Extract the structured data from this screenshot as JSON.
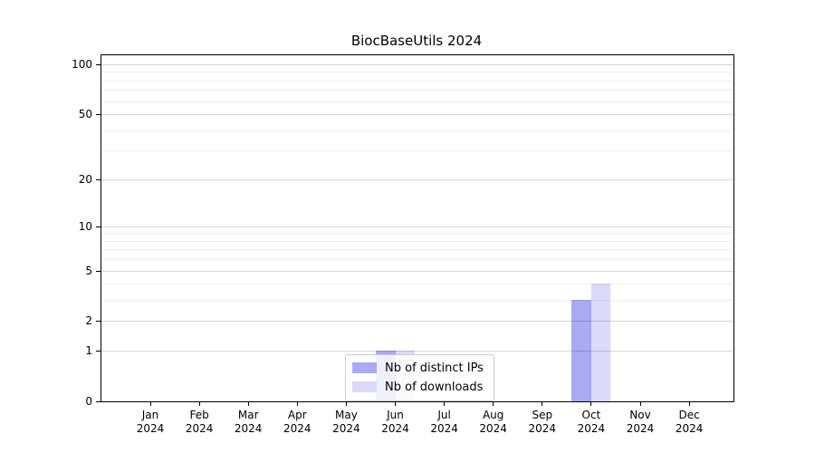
{
  "chart_data": {
    "type": "bar",
    "title": "BiocBaseUtils 2024",
    "categories": [
      "Jan 2024",
      "Feb 2024",
      "Mar 2024",
      "Apr 2024",
      "May 2024",
      "Jun 2024",
      "Jul 2024",
      "Aug 2024",
      "Sep 2024",
      "Oct 2024",
      "Nov 2024",
      "Dec 2024"
    ],
    "series": [
      {
        "name": "Nb of distinct IPs",
        "color": "#a9a9f4",
        "values": [
          0,
          0,
          0,
          0,
          0,
          1,
          0,
          0,
          0,
          3,
          0,
          0
        ]
      },
      {
        "name": "Nb of downloads",
        "color": "#dadaf8",
        "values": [
          0,
          0,
          0,
          0,
          0,
          1,
          0,
          0,
          0,
          4,
          0,
          0
        ]
      }
    ],
    "xlabel": "",
    "ylabel": "",
    "yscale": "log1p",
    "yticks": [
      0,
      1,
      2,
      5,
      10,
      20,
      50,
      100
    ],
    "minor_grid_values": [
      3,
      4,
      6,
      7,
      8,
      9,
      30,
      40,
      60,
      70,
      80,
      90
    ],
    "ylim": [
      0,
      113
    ],
    "grid": true,
    "grid_on_top_of_bars": true,
    "legend_position": "bottom-center"
  },
  "colors": {
    "bar_distinct_ips": "#a9a9f4",
    "bar_downloads": "#dadaf8",
    "grid_major": "rgba(0,0,0,0.16)",
    "grid_minor": "rgba(0,0,0,0.07)",
    "axis": "#000000",
    "background": "#ffffff",
    "legend_border": "#cccccc"
  }
}
